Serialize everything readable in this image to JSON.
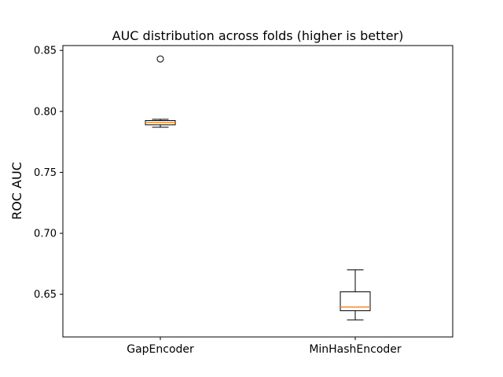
{
  "chart_data": {
    "type": "boxplot",
    "title": "AUC distribution across folds (higher is better)",
    "xlabel": "",
    "ylabel": "ROC AUC",
    "categories": [
      "GapEncoder",
      "MinHashEncoder"
    ],
    "yticks": [
      0.65,
      0.7,
      0.75,
      0.8,
      0.85
    ],
    "ytick_labels": [
      "0.65",
      "0.70",
      "0.75",
      "0.80",
      "0.85"
    ],
    "ylim": [
      0.615,
      0.854
    ],
    "grid": false,
    "legend": "none",
    "series": [
      {
        "name": "GapEncoder",
        "whisker_low": 0.787,
        "q1": 0.789,
        "median": 0.791,
        "q3": 0.7925,
        "whisker_high": 0.7935,
        "outliers": [
          0.843
        ]
      },
      {
        "name": "MinHashEncoder",
        "whisker_low": 0.629,
        "q1": 0.6365,
        "median": 0.6395,
        "q3": 0.652,
        "whisker_high": 0.67,
        "outliers": []
      }
    ],
    "colors": {
      "box_stroke": "#000000",
      "box_fill": "#ffffff",
      "median": "#ff7f0e",
      "axis": "#000000",
      "text": "#000000"
    }
  }
}
